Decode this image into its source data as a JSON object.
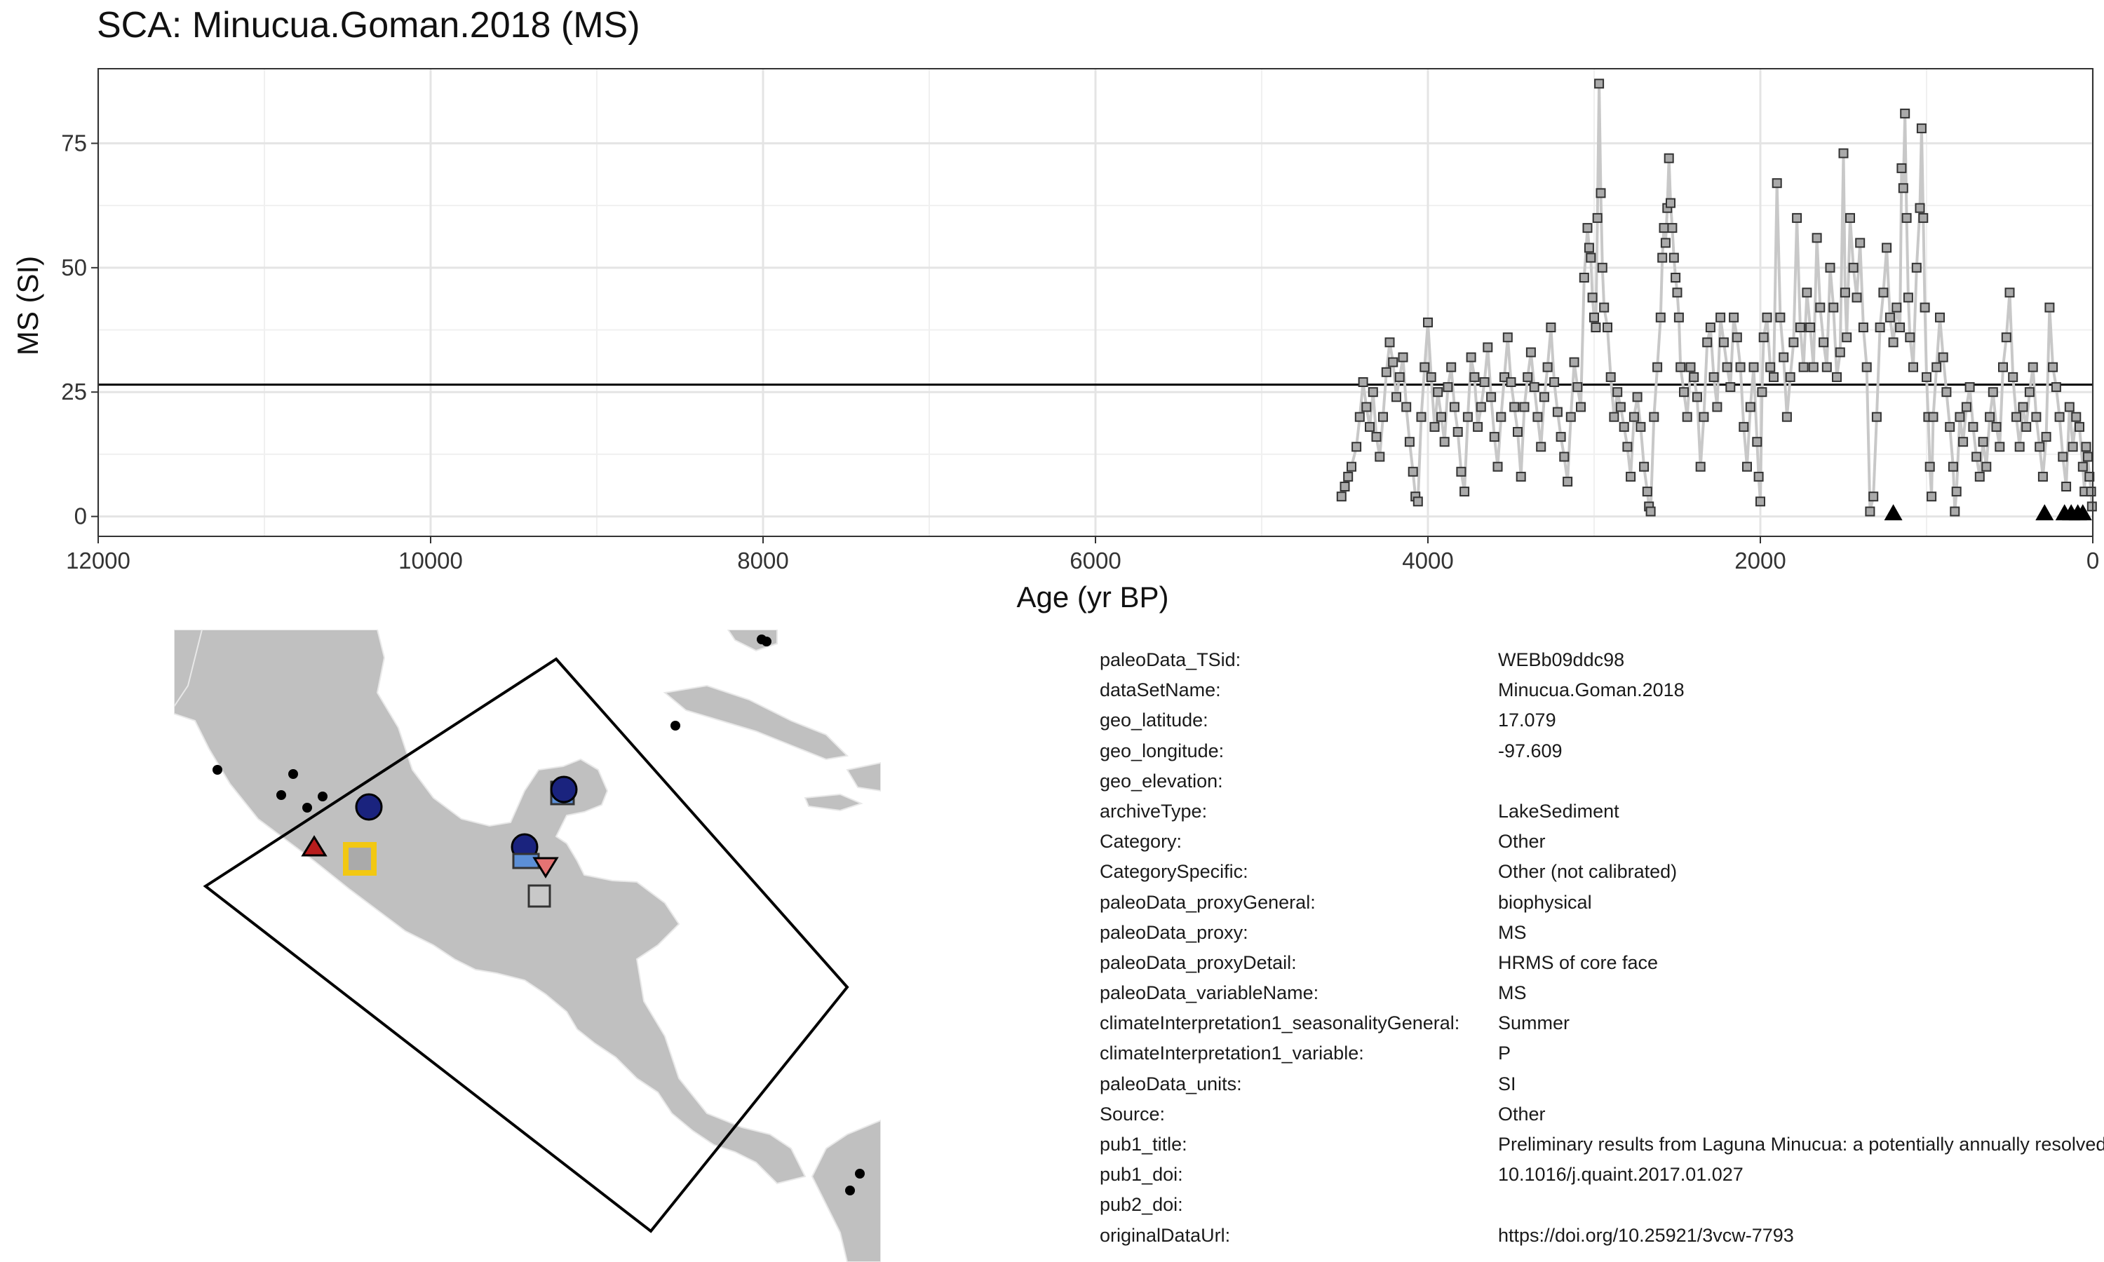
{
  "chart_data": {
    "type": "scatter",
    "title": "SCA: Minucua.Goman.2018 (MS)",
    "xlabel": "Age (yr BP)",
    "ylabel": "MS (SI)",
    "xlim": [
      12000,
      0
    ],
    "x_reversed": true,
    "ylim": [
      -4,
      90
    ],
    "xticks": [
      12000,
      10000,
      8000,
      6000,
      4000,
      2000,
      0
    ],
    "yticks": [
      0,
      25,
      50,
      75
    ],
    "grid": true,
    "mean_line": 26.5,
    "series_style": {
      "marker": "square",
      "fill": "#aaaaaa",
      "stroke": "#333333",
      "line": "#c8c8c8"
    },
    "points": [
      [
        4520,
        4
      ],
      [
        4500,
        6
      ],
      [
        4480,
        8
      ],
      [
        4460,
        10
      ],
      [
        4430,
        14
      ],
      [
        4410,
        20
      ],
      [
        4390,
        27
      ],
      [
        4370,
        22
      ],
      [
        4350,
        18
      ],
      [
        4330,
        25
      ],
      [
        4310,
        16
      ],
      [
        4290,
        12
      ],
      [
        4270,
        20
      ],
      [
        4250,
        29
      ],
      [
        4230,
        35
      ],
      [
        4210,
        31
      ],
      [
        4190,
        24
      ],
      [
        4170,
        28
      ],
      [
        4150,
        32
      ],
      [
        4130,
        22
      ],
      [
        4110,
        15
      ],
      [
        4090,
        9
      ],
      [
        4075,
        4
      ],
      [
        4060,
        3
      ],
      [
        4040,
        20
      ],
      [
        4020,
        30
      ],
      [
        4000,
        39
      ],
      [
        3980,
        28
      ],
      [
        3960,
        18
      ],
      [
        3940,
        25
      ],
      [
        3920,
        20
      ],
      [
        3900,
        15
      ],
      [
        3880,
        26
      ],
      [
        3860,
        30
      ],
      [
        3840,
        22
      ],
      [
        3820,
        17
      ],
      [
        3800,
        9
      ],
      [
        3780,
        5
      ],
      [
        3760,
        20
      ],
      [
        3740,
        32
      ],
      [
        3720,
        28
      ],
      [
        3700,
        18
      ],
      [
        3680,
        22
      ],
      [
        3660,
        27
      ],
      [
        3640,
        34
      ],
      [
        3620,
        24
      ],
      [
        3600,
        16
      ],
      [
        3580,
        10
      ],
      [
        3560,
        20
      ],
      [
        3540,
        28
      ],
      [
        3520,
        36
      ],
      [
        3500,
        27
      ],
      [
        3480,
        22
      ],
      [
        3460,
        17
      ],
      [
        3440,
        8
      ],
      [
        3420,
        22
      ],
      [
        3400,
        28
      ],
      [
        3380,
        33
      ],
      [
        3360,
        26
      ],
      [
        3340,
        20
      ],
      [
        3320,
        14
      ],
      [
        3300,
        24
      ],
      [
        3280,
        30
      ],
      [
        3260,
        38
      ],
      [
        3240,
        27
      ],
      [
        3220,
        21
      ],
      [
        3200,
        16
      ],
      [
        3180,
        12
      ],
      [
        3160,
        7
      ],
      [
        3140,
        20
      ],
      [
        3120,
        31
      ],
      [
        3100,
        26
      ],
      [
        3080,
        22
      ],
      [
        3060,
        48
      ],
      [
        3040,
        58
      ],
      [
        3030,
        54
      ],
      [
        3020,
        52
      ],
      [
        3010,
        44
      ],
      [
        3000,
        40
      ],
      [
        2990,
        38
      ],
      [
        2980,
        60
      ],
      [
        2970,
        87
      ],
      [
        2960,
        65
      ],
      [
        2950,
        50
      ],
      [
        2940,
        42
      ],
      [
        2920,
        38
      ],
      [
        2900,
        28
      ],
      [
        2880,
        20
      ],
      [
        2860,
        25
      ],
      [
        2840,
        22
      ],
      [
        2820,
        18
      ],
      [
        2800,
        14
      ],
      [
        2780,
        8
      ],
      [
        2760,
        20
      ],
      [
        2740,
        24
      ],
      [
        2720,
        18
      ],
      [
        2700,
        10
      ],
      [
        2680,
        5
      ],
      [
        2670,
        2
      ],
      [
        2660,
        1
      ],
      [
        2640,
        20
      ],
      [
        2620,
        30
      ],
      [
        2600,
        40
      ],
      [
        2590,
        52
      ],
      [
        2580,
        58
      ],
      [
        2570,
        55
      ],
      [
        2560,
        62
      ],
      [
        2550,
        72
      ],
      [
        2540,
        63
      ],
      [
        2530,
        58
      ],
      [
        2520,
        52
      ],
      [
        2510,
        48
      ],
      [
        2500,
        45
      ],
      [
        2490,
        40
      ],
      [
        2480,
        30
      ],
      [
        2460,
        25
      ],
      [
        2440,
        20
      ],
      [
        2420,
        30
      ],
      [
        2400,
        28
      ],
      [
        2380,
        24
      ],
      [
        2360,
        10
      ],
      [
        2340,
        20
      ],
      [
        2320,
        35
      ],
      [
        2300,
        38
      ],
      [
        2280,
        28
      ],
      [
        2260,
        22
      ],
      [
        2240,
        40
      ],
      [
        2220,
        35
      ],
      [
        2200,
        30
      ],
      [
        2180,
        26
      ],
      [
        2160,
        40
      ],
      [
        2140,
        36
      ],
      [
        2120,
        30
      ],
      [
        2100,
        18
      ],
      [
        2080,
        10
      ],
      [
        2060,
        22
      ],
      [
        2040,
        30
      ],
      [
        2020,
        15
      ],
      [
        2010,
        8
      ],
      [
        2000,
        3
      ],
      [
        1990,
        25
      ],
      [
        1980,
        36
      ],
      [
        1960,
        40
      ],
      [
        1940,
        30
      ],
      [
        1920,
        28
      ],
      [
        1900,
        67
      ],
      [
        1880,
        40
      ],
      [
        1860,
        32
      ],
      [
        1840,
        20
      ],
      [
        1820,
        28
      ],
      [
        1800,
        35
      ],
      [
        1780,
        60
      ],
      [
        1760,
        38
      ],
      [
        1740,
        30
      ],
      [
        1720,
        45
      ],
      [
        1700,
        38
      ],
      [
        1680,
        30
      ],
      [
        1660,
        56
      ],
      [
        1640,
        42
      ],
      [
        1620,
        35
      ],
      [
        1600,
        30
      ],
      [
        1580,
        50
      ],
      [
        1560,
        42
      ],
      [
        1540,
        28
      ],
      [
        1520,
        33
      ],
      [
        1500,
        73
      ],
      [
        1490,
        45
      ],
      [
        1480,
        36
      ],
      [
        1460,
        60
      ],
      [
        1440,
        50
      ],
      [
        1420,
        44
      ],
      [
        1400,
        55
      ],
      [
        1380,
        38
      ],
      [
        1360,
        30
      ],
      [
        1340,
        1
      ],
      [
        1320,
        4
      ],
      [
        1300,
        20
      ],
      [
        1280,
        38
      ],
      [
        1260,
        45
      ],
      [
        1240,
        54
      ],
      [
        1220,
        40
      ],
      [
        1200,
        35
      ],
      [
        1180,
        42
      ],
      [
        1160,
        38
      ],
      [
        1150,
        70
      ],
      [
        1140,
        66
      ],
      [
        1130,
        81
      ],
      [
        1120,
        60
      ],
      [
        1110,
        44
      ],
      [
        1100,
        36
      ],
      [
        1080,
        30
      ],
      [
        1060,
        50
      ],
      [
        1040,
        62
      ],
      [
        1030,
        78
      ],
      [
        1020,
        60
      ],
      [
        1010,
        42
      ],
      [
        1000,
        28
      ],
      [
        990,
        20
      ],
      [
        980,
        10
      ],
      [
        970,
        4
      ],
      [
        960,
        20
      ],
      [
        940,
        30
      ],
      [
        920,
        40
      ],
      [
        900,
        32
      ],
      [
        880,
        25
      ],
      [
        860,
        18
      ],
      [
        840,
        10
      ],
      [
        830,
        1
      ],
      [
        820,
        5
      ],
      [
        800,
        20
      ],
      [
        780,
        15
      ],
      [
        760,
        22
      ],
      [
        740,
        26
      ],
      [
        720,
        18
      ],
      [
        700,
        12
      ],
      [
        680,
        8
      ],
      [
        660,
        15
      ],
      [
        640,
        10
      ],
      [
        620,
        20
      ],
      [
        600,
        25
      ],
      [
        580,
        18
      ],
      [
        560,
        14
      ],
      [
        540,
        30
      ],
      [
        520,
        36
      ],
      [
        500,
        45
      ],
      [
        480,
        28
      ],
      [
        460,
        20
      ],
      [
        440,
        14
      ],
      [
        420,
        22
      ],
      [
        400,
        18
      ],
      [
        380,
        25
      ],
      [
        360,
        30
      ],
      [
        340,
        20
      ],
      [
        320,
        14
      ],
      [
        300,
        8
      ],
      [
        280,
        16
      ],
      [
        260,
        42
      ],
      [
        240,
        30
      ],
      [
        220,
        26
      ],
      [
        200,
        20
      ],
      [
        180,
        12
      ],
      [
        160,
        6
      ],
      [
        140,
        22
      ],
      [
        120,
        14
      ],
      [
        100,
        20
      ],
      [
        80,
        18
      ],
      [
        60,
        10
      ],
      [
        50,
        5
      ],
      [
        40,
        14
      ],
      [
        30,
        12
      ],
      [
        20,
        8
      ],
      [
        10,
        5
      ],
      [
        5,
        2
      ]
    ],
    "markers": [
      {
        "x": 1200,
        "y": 0.5,
        "shape": "triangle",
        "fill": "#000000"
      },
      {
        "x": 290,
        "y": 0.5,
        "shape": "triangle",
        "fill": "#000000"
      },
      {
        "x": 170,
        "y": 0.5,
        "shape": "triangle",
        "fill": "#000000"
      },
      {
        "x": 130,
        "y": 0.5,
        "shape": "triangle",
        "fill": "#000000"
      },
      {
        "x": 90,
        "y": 0.5,
        "shape": "triangle",
        "fill": "#000000"
      },
      {
        "x": 60,
        "y": 0.5,
        "shape": "triangle",
        "fill": "#000000"
      }
    ]
  },
  "map": {
    "land_color": "#c0c0c0",
    "border_color": "#e8e8e8",
    "box_color": "#000000",
    "symbols": [
      {
        "kind": "square",
        "fill": "#aaaaaa",
        "stroke": "#f2c812",
        "lon": -97.609,
        "lat": 17.079
      },
      {
        "kind": "circle",
        "fill": "#1a237e"
      },
      {
        "kind": "circle",
        "fill": "#1a237e"
      },
      {
        "kind": "circle",
        "fill": "#1a237e"
      },
      {
        "kind": "triangle",
        "fill": "#b71c1c"
      },
      {
        "kind": "triangle-down",
        "fill": "#e57373"
      },
      {
        "kind": "rect",
        "fill": "#5c8fd6"
      },
      {
        "kind": "square",
        "fill": "#c8c8c8",
        "stroke": "#333333"
      },
      {
        "kind": "square",
        "fill": "#5c8fd6",
        "stroke": "#333333"
      }
    ]
  },
  "metadata": [
    {
      "key": "paleoData_TSid:",
      "value": "WEBb09ddc98"
    },
    {
      "key": "dataSetName:",
      "value": "Minucua.Goman.2018"
    },
    {
      "key": "geo_latitude:",
      "value": "17.079"
    },
    {
      "key": "geo_longitude:",
      "value": "-97.609"
    },
    {
      "key": "geo_elevation:",
      "value": ""
    },
    {
      "key": "archiveType:",
      "value": "LakeSediment"
    },
    {
      "key": "Category:",
      "value": "Other"
    },
    {
      "key": "CategorySpecific:",
      "value": "Other (not calibrated)"
    },
    {
      "key": "paleoData_proxyGeneral:",
      "value": "biophysical"
    },
    {
      "key": "paleoData_proxy:",
      "value": "MS"
    },
    {
      "key": "paleoData_proxyDetail:",
      "value": "HRMS of core face"
    },
    {
      "key": "paleoData_variableName:",
      "value": "MS"
    },
    {
      "key": "climateInterpretation1_seasonalityGeneral:",
      "value": "Summer"
    },
    {
      "key": "climateInterpretation1_variable:",
      "value": "P"
    },
    {
      "key": "paleoData_units:",
      "value": "SI"
    },
    {
      "key": "Source:",
      "value": "Other"
    },
    {
      "key": "pub1_title:",
      "value": "Preliminary results from Laguna Minucua: a potentially annually resolved record"
    },
    {
      "key": "pub1_doi:",
      "value": "10.1016/j.quaint.2017.01.027"
    },
    {
      "key": "pub2_doi:",
      "value": ""
    },
    {
      "key": "originalDataUrl:",
      "value": "https://doi.org/10.25921/3vcw-7793"
    }
  ]
}
